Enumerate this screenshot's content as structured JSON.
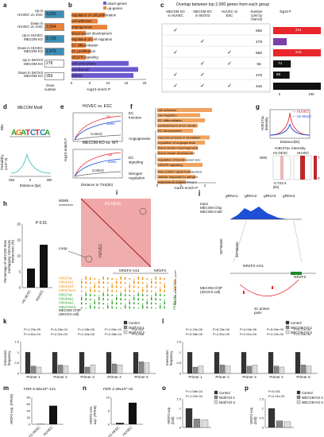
{
  "panel_labels": [
    "a",
    "b",
    "c",
    "d",
    "e",
    "f",
    "g",
    "h",
    "i",
    "j",
    "k",
    "l",
    "m",
    "n",
    "o",
    "p"
  ],
  "panel_a": {
    "rows": [
      {
        "label": "Up in\nHUVEC vs. ESC",
        "value": "3,925",
        "color": "#3a8fb7"
      },
      {
        "label": "Down in\nHUVEC vs. ESC",
        "value": "2,564",
        "color": "#e8833a"
      },
      {
        "label": "Up in HUVEC\nMECOM KO",
        "value": "2,733",
        "color": "#3a8fb7"
      },
      {
        "label": "Down in HUVEC\nMECOM KO",
        "value": "2,476",
        "color": "#3a8fb7"
      },
      {
        "label": "Up in SKOV3\nMECOM KO",
        "value": "278",
        "color": "#ffffff"
      },
      {
        "label": "Down in SKOV3\nMECOM KO",
        "value": "359",
        "color": "#ffffff"
      }
    ],
    "footer": "Gene\nnumber"
  },
  "panel_b": {
    "legend": [
      "down-genes",
      "up-genes"
    ],
    "legend_colors": [
      "#6a5acd",
      "#e8833a"
    ],
    "terms": [
      "regulation of cell proliferation",
      "cell adhesion",
      "angiogenesis",
      "blood vessel development",
      "regulation of cell migration",
      "EC differentiation",
      "EC proliferation",
      "VEGFR signaling",
      "cell cycle phase",
      "cell division",
      "mitosis"
    ],
    "xlabel": "-log10 enrich P",
    "ticks": [
      "0",
      "5",
      "10",
      "15",
      "20"
    ]
  },
  "panel_c": {
    "title": "Overlap between top 2,000 genes from each group",
    "headers": [
      "MECOM KO\nin HUVEC",
      "MECOM KO\nin SKOV3",
      "HUVEC vs\nESC",
      "Number\n(194 by\nchance)",
      "-log10 P"
    ],
    "numbers": [
      "665",
      "478",
      "660",
      "56",
      "478",
      "445"
    ],
    "logp": [
      "",
      "214",
      "",
      "",
      "",
      ""
    ],
    "bar_vals": [
      "210",
      "57",
      "74",
      "69"
    ],
    "ticks": [
      "0",
      "100"
    ]
  },
  "panel_d": {
    "title": "MECOM Motif",
    "ylabel_top": "Bits",
    "ylabel_bottom": "Probability\n(x10^-3)",
    "xlabel": "Distance (bp)",
    "ticks": [
      "-250",
      "0",
      "250"
    ]
  },
  "panel_e": {
    "title": "HUVEC vs. ESC",
    "subtitle": "MECOM KO vs. WT",
    "labels": [
      "up",
      "down",
      "Control",
      "up",
      "down",
      "Control"
    ],
    "ylabel": "-log10 enrich P",
    "xlabel": "Distance to TSS(kb)"
  },
  "panel_f": {
    "groups": [
      "EC\nfunction",
      "Angiogenesis",
      "EC\nsignaling",
      "Nitrogen\nregulation"
    ],
    "terms": [
      "cell adhesion",
      "cell migration",
      "EC differentiation",
      "establishment of EC barrier",
      "EC development",
      "vascular process in circulation",
      "regulation of angiogenesis",
      "blood vessel morphogenesis",
      "blood vessel development",
      "regulation of blood vessel size",
      "VEGFR signaling",
      "Ras protein signal transduction",
      "cellular response to nitrogen",
      "response to organonitrogen"
    ],
    "xlabel": "-log10 enrich P",
    "ticks": [
      "0",
      "1",
      "2"
    ]
  },
  "panel_g": {
    "legend": [
      "HUVEC",
      "H1-hESC"
    ],
    "ylabel": "H3K27ac\nintensity",
    "xlabel": "Distance(kb)",
    "heat_title": "H3K27ac intensity",
    "heat_cols": [
      "H1-hESC",
      "HUVEC"
    ],
    "scale": [
      "7",
      "0"
    ],
    "scale_max": "2000",
    "tss_label": "-5  TSS  5\n(kb)"
  },
  "panel_h": {
    "pvalue": "P 0.01",
    "ylabel": "Percentage of MECOM Sites\noverlapping Chromatin\ninteractions (%)",
    "chart_data": {
      "type": "bar",
      "categories": [
        "H1-hESC",
        "HUVEC"
      ],
      "values": [
        6,
        13.5
      ],
      "ylim": [
        0,
        20
      ],
      "ticks": [
        "0",
        "5",
        "10",
        "15",
        "20"
      ]
    }
  },
  "panel_i": {
    "scale_bar": "500kb",
    "cell_top": "H1-hESC",
    "cell_bottom": "HUVEC",
    "loop": "Loop",
    "gene1": "NR2F2-AS1",
    "gene2": "NR2F2",
    "tracks_huvec": [
      "H3K27ac",
      "H3K4me1",
      "H3K4me3",
      "H3K27me3"
    ],
    "tracks_h1": [
      "H3K27ac",
      "H3K4me1",
      "H3K4me3",
      "H3K27me3"
    ],
    "side_huvec": "HUVEC",
    "side_h1": "H1-hESC",
    "chip": "MECOM ChIP\n(SKOV3 cell)",
    "ylabel": "ChIP-Seq reads density"
  },
  "panel_j": {
    "grnas": [
      "gRNA1",
      "gRNA2",
      "gRNA3",
      "gRNA4"
    ],
    "input": "Input\nMECOM Chip\nMECOM motif",
    "coord1": "95790400",
    "coord2": "95790600",
    "gene1": "NR2F2-AS1",
    "gene2": "NR2F2",
    "chip": "MECOM ChIP\n(SKOV3 cell)",
    "primers": "3C primer\npairs"
  },
  "panel_k": {
    "legend": [
      "Control",
      "Motif KO-1",
      "Motif KO-2"
    ],
    "ylabel": "Interaction\nfrequency",
    "pvals": [
      [
        "P=1.23e-05",
        "P=1.81e-03"
      ],
      [
        "P=4.26e-04",
        "P=2.01e-03"
      ],
      [
        "P=1.08e-05",
        "P=2.40e-05"
      ],
      [
        "P=1.59e-10",
        "P=2.58e-04"
      ],
      [
        "P=0.002",
        "P=0.008"
      ]
    ],
    "chart_data": {
      "type": "bar",
      "categories": [
        "Primer 1",
        "Primer 2",
        "Primer 3",
        "Primer 4",
        "Primer 5"
      ],
      "series": [
        {
          "name": "Control",
          "values": [
            1.0,
            1.0,
            1.0,
            1.0,
            1.0
          ]
        },
        {
          "name": "Motif KO-1",
          "values": [
            0.35,
            0.4,
            0.3,
            0.45,
            0.55
          ]
        },
        {
          "name": "Motif KO-2",
          "values": [
            0.3,
            0.35,
            0.4,
            0.4,
            0.5
          ]
        }
      ],
      "ylim": [
        0,
        1.5
      ],
      "ticks": [
        "0",
        "0.5",
        "1",
        "1.5"
      ]
    }
  },
  "panel_l": {
    "legend": [
      "Control",
      "MECOM KO-1",
      "MECOM KO-2"
    ],
    "ylabel": "Interaction\nfrequency",
    "pvals": [
      [
        "P=1.10e-06",
        "P=3.38e-05"
      ],
      [
        "P=8.26e-06",
        "P=2.81e-05"
      ],
      [
        "P=4.03e-06",
        "P=2.51e-05"
      ],
      [
        "P=5.94e-05",
        "P=2.22e-05"
      ],
      [
        "P=9.27e-06",
        "P=2.24e-06"
      ]
    ],
    "chart_data": {
      "type": "bar",
      "categories": [
        "Primer 1",
        "Primer 2",
        "Primer 3",
        "Primer 4",
        "Primer 5"
      ],
      "series": [
        {
          "name": "Control",
          "values": [
            1.0,
            1.0,
            1.0,
            1.0,
            1.0
          ]
        },
        {
          "name": "MECOM KO-1",
          "values": [
            0.3,
            0.4,
            0.35,
            0.35,
            0.4
          ]
        },
        {
          "name": "MECOM KO-2",
          "values": [
            0.35,
            0.35,
            0.4,
            0.3,
            0.35
          ]
        }
      ],
      "ylim": [
        0,
        1.5
      ],
      "ticks": [
        "0",
        "0.5",
        "1",
        "1.5"
      ]
    }
  },
  "panel_m": {
    "fdr": "FDR 6.59x10^-121",
    "ylabel": "NR2F2 exp. (FPKM)",
    "chart_data": {
      "type": "bar",
      "categories": [
        "H1-hESC",
        "HUVEC"
      ],
      "values": [
        1,
        55
      ],
      "ylim": [
        0,
        80
      ],
      "ticks": [
        "0",
        "20",
        "40",
        "60",
        "80"
      ]
    }
  },
  "panel_n": {
    "fdr": "FDR 2.49x10^-32",
    "ylabel": "NR2F2-AS1\nexp. (FPKM)",
    "chart_data": {
      "type": "bar",
      "categories": [
        "H1-hESC",
        "HUVEC"
      ],
      "values": [
        0.5,
        8
      ],
      "ylim": [
        0,
        10
      ],
      "ticks": [
        "0",
        "5",
        "10"
      ]
    }
  },
  "panel_o": {
    "legend": [
      "Control",
      "Motif KO-1",
      "Motif KO-2"
    ],
    "pvals": [
      "P=1.58e-04",
      "P=1.20e-04"
    ],
    "ylabel": "NR2F2 exp.\n(fold)",
    "chart_data": {
      "type": "bar",
      "categories": [
        "Control",
        "Motif KO-1",
        "Motif KO-2"
      ],
      "values": [
        1.0,
        0.45,
        0.4
      ],
      "ylim": [
        0,
        1.5
      ],
      "ticks": [
        "0",
        "0.5",
        "1",
        "1.5"
      ]
    }
  },
  "panel_p": {
    "legend": [
      "Control",
      "MECOM KO-1",
      "MECOM KO-2"
    ],
    "pvals": [
      "P=0.001",
      "P=2.11e-03"
    ],
    "ylabel": "NR2F2 exp.\n(fold)",
    "chart_data": {
      "type": "bar",
      "categories": [
        "Control",
        "MECOM KO-1",
        "MECOM KO-2"
      ],
      "values": [
        1.0,
        0.35,
        0.3
      ],
      "ylim": [
        0,
        1.5
      ],
      "ticks": [
        "0",
        "0.5",
        "1",
        "1.5"
      ]
    }
  }
}
